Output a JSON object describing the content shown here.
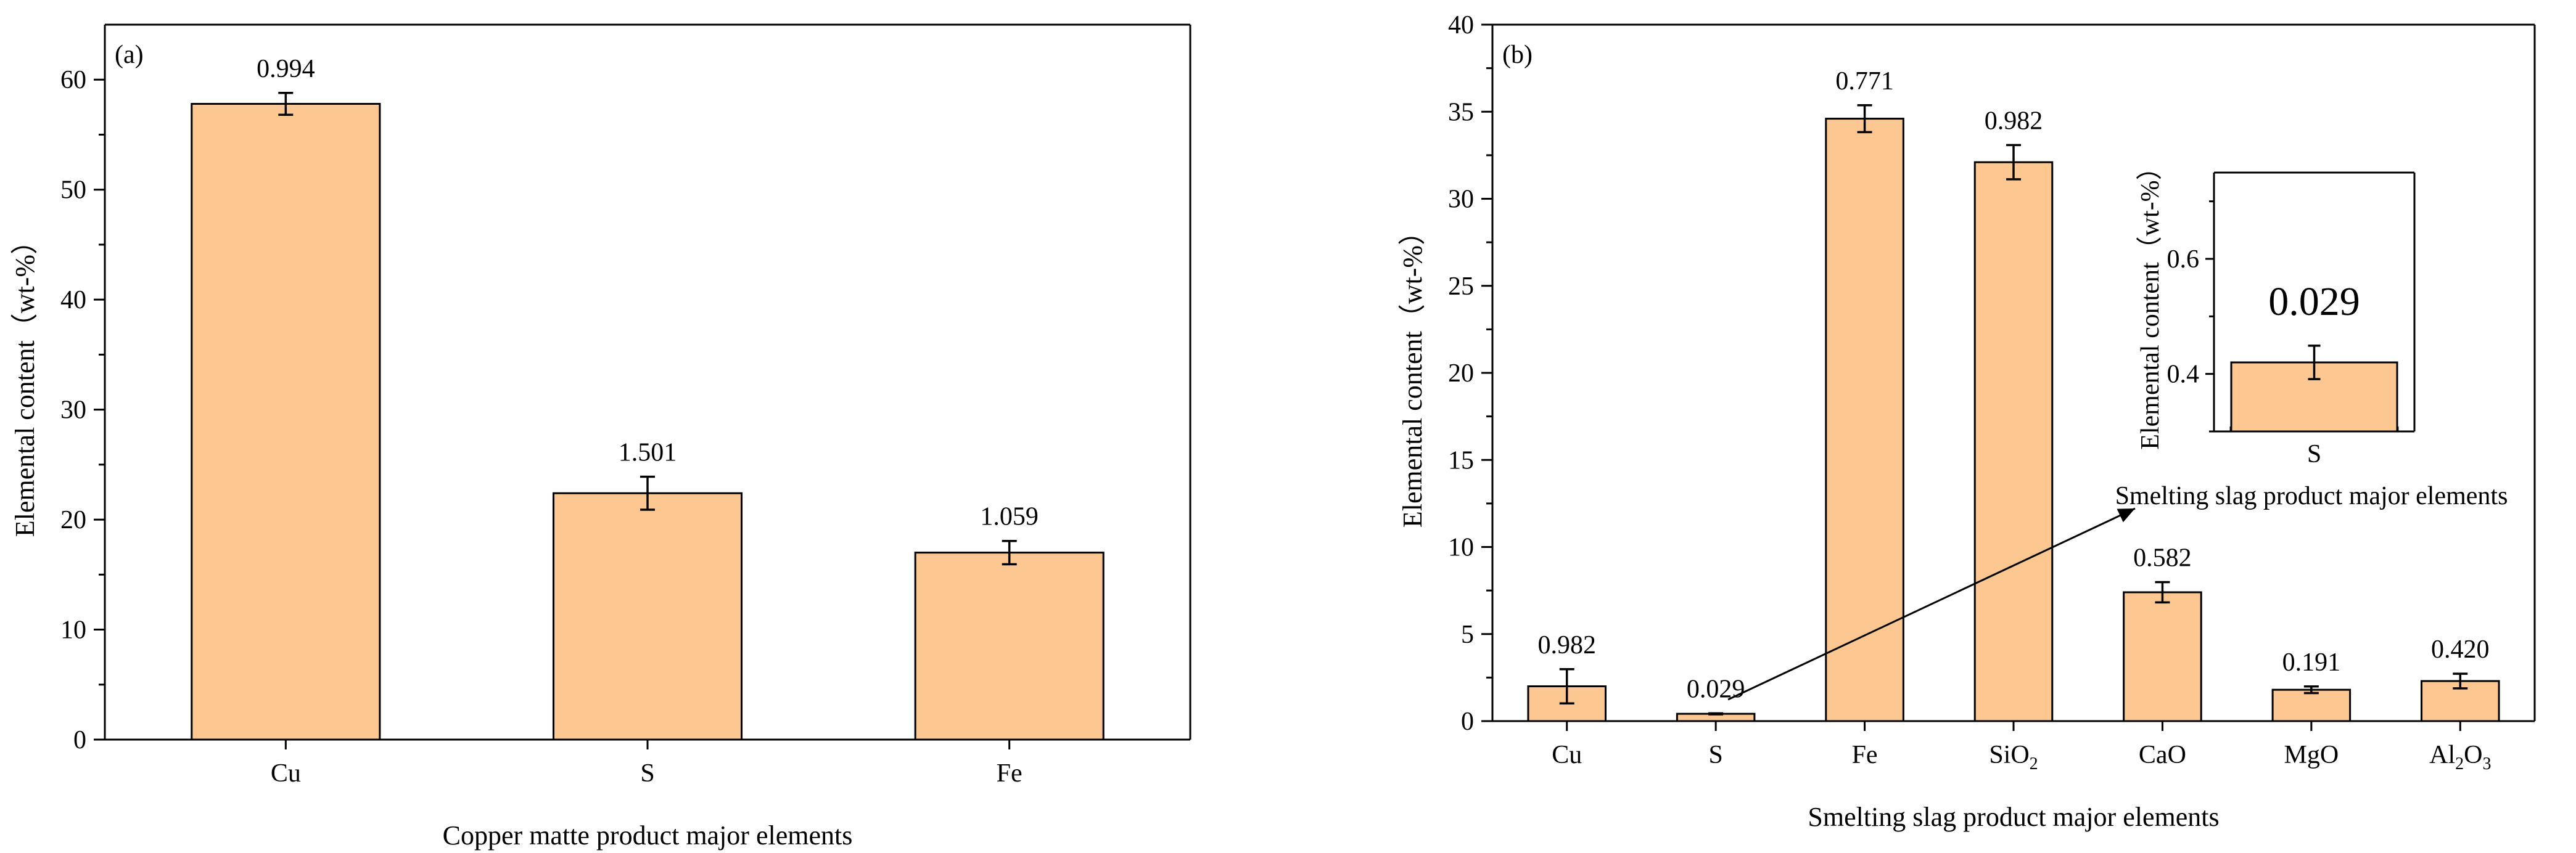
{
  "colors": {
    "bar_fill": "#FCC791",
    "bar_stroke": "#000000",
    "axis": "#000000"
  },
  "chart_data": [
    {
      "type": "bar",
      "panel": "(a)",
      "xlabel": "Copper matte product major elements",
      "ylabel": "Elemental content（wt-%）",
      "ylim": [
        0,
        65
      ],
      "yticks": [
        "0",
        "10",
        "20",
        "30",
        "40",
        "50",
        "60"
      ],
      "categories": [
        "Cu",
        "S",
        "Fe"
      ],
      "values": [
        57.8,
        22.4,
        17.0
      ],
      "errors": [
        0.994,
        1.501,
        1.059
      ],
      "value_labels": [
        "0.994",
        "1.501",
        "1.059"
      ],
      "grid": false,
      "legend": "none"
    },
    {
      "type": "bar",
      "panel": "(b)",
      "xlabel": "Smelting slag product major elements",
      "ylabel": "Elemental content（wt-%）",
      "ylim": [
        0,
        40
      ],
      "yticks": [
        "0",
        "5",
        "10",
        "15",
        "20",
        "25",
        "30",
        "35",
        "40"
      ],
      "categories": [
        {
          "base": "Cu",
          "sub": ""
        },
        {
          "base": "S",
          "sub": ""
        },
        {
          "base": "Fe",
          "sub": ""
        },
        {
          "base": "SiO",
          "sub": "2"
        },
        {
          "base": "CaO",
          "sub": ""
        },
        {
          "base": "MgO",
          "sub": ""
        },
        {
          "base": "Al",
          "sub": "2",
          "base2": "O",
          "sub2": "3"
        }
      ],
      "values": [
        2.0,
        0.42,
        34.6,
        32.1,
        7.4,
        1.8,
        2.3
      ],
      "errors": [
        0.982,
        0.029,
        0.771,
        0.982,
        0.582,
        0.191,
        0.42
      ],
      "value_labels": [
        "0.982",
        "0.029",
        "0.771",
        "0.982",
        "0.582",
        "0.191",
        "0.420"
      ],
      "grid": false,
      "legend": "none",
      "inset": {
        "type": "bar",
        "categories": [
          "S"
        ],
        "values": [
          0.42
        ],
        "errors": [
          0.029
        ],
        "value_label": "0.029",
        "ylim": [
          0.3,
          0.75
        ],
        "yticks": [
          "0.4",
          "0.6"
        ],
        "ylabel": "Elemental content（wt-%）",
        "xlabel": "Smelting slag product major elements"
      }
    }
  ]
}
